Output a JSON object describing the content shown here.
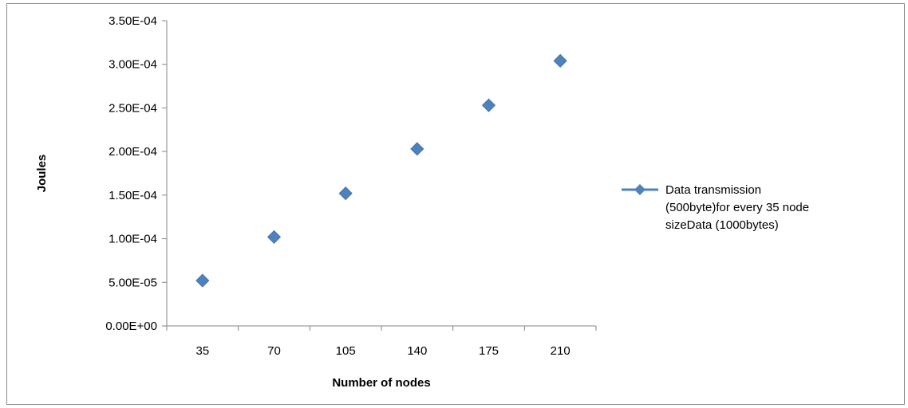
{
  "chart_data": {
    "type": "scatter",
    "xlabel": "Number of nodes",
    "ylabel": "Joules",
    "x_categories": [
      "35",
      "70",
      "105",
      "140",
      "175",
      "210"
    ],
    "ylim": [
      0,
      0.00035
    ],
    "y_tick_values": [
      0,
      5e-05,
      0.0001,
      0.00015,
      0.0002,
      0.00025,
      0.0003,
      0.00035
    ],
    "y_tick_labels": [
      "0.00E+00",
      "5.00E-05",
      "1.00E-04",
      "1.50E-04",
      "2.00E-04",
      "2.50E-04",
      "3.00E-04",
      "3.50E-04"
    ],
    "grid": false,
    "legend_position": "right",
    "series": [
      {
        "name_lines": [
          "Data transmission",
          "(500byte)for every 35 node",
          "sizeData (1000bytes)"
        ],
        "color": "#4f81bd",
        "marker": "diamond",
        "x": [
          35,
          70,
          105,
          140,
          175,
          210
        ],
        "y": [
          5.2e-05,
          0.000102,
          0.000152,
          0.000203,
          0.000253,
          0.000304
        ]
      }
    ]
  }
}
